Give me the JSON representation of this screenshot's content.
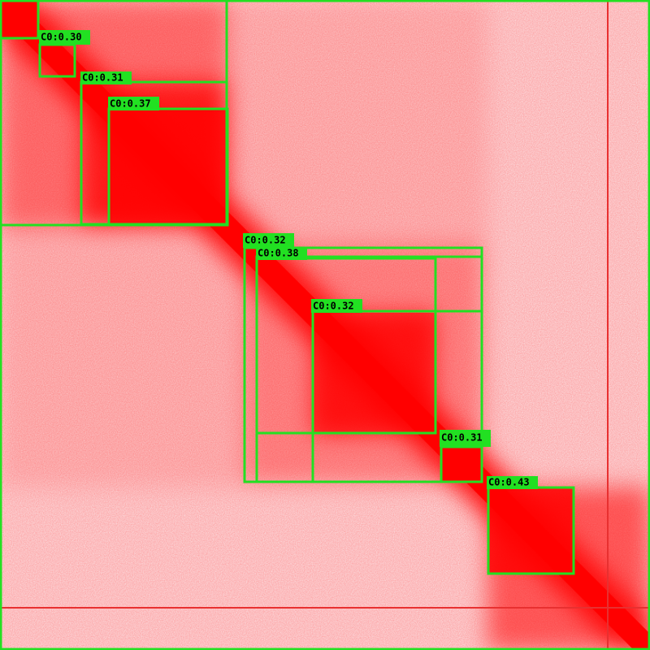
{
  "detections": [
    {
      "label": "C0:0.30"
    },
    {
      "label": "C0:0.31"
    },
    {
      "label": "C0:0.37"
    },
    {
      "label": "C0:0.32"
    },
    {
      "label": "C0:0.38"
    },
    {
      "label": "C0:0.32"
    },
    {
      "label": "C0:0.31"
    },
    {
      "label": "C0:0.43"
    }
  ]
}
